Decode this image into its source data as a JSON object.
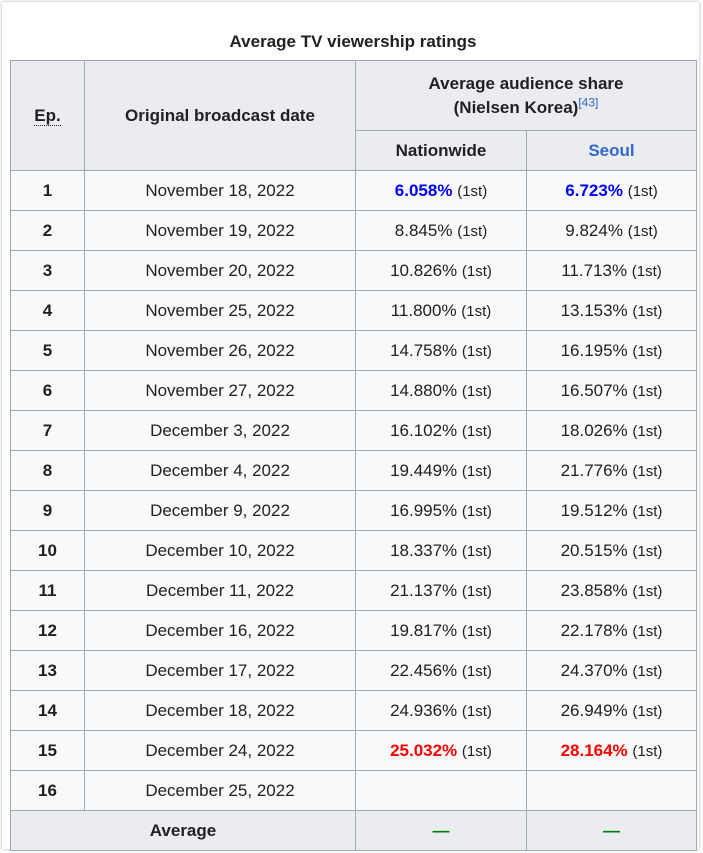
{
  "table": {
    "caption": "Average TV viewership ratings",
    "headers": {
      "ep": "Ep.",
      "date": "Original broadcast date",
      "share_line1": "Average audience share",
      "share_line2": "(Nielsen Korea)",
      "share_ref": "[43]",
      "nationwide": "Nationwide",
      "seoul": "Seoul"
    },
    "rows": [
      {
        "ep": "1",
        "date": "November 18, 2022",
        "nationwide": "6.058%",
        "nationwide_rank": "(1st)",
        "seoul": "6.723%",
        "seoul_rank": "(1st)"
      },
      {
        "ep": "2",
        "date": "November 19, 2022",
        "nationwide": "8.845%",
        "nationwide_rank": "(1st)",
        "seoul": "9.824%",
        "seoul_rank": "(1st)"
      },
      {
        "ep": "3",
        "date": "November 20, 2022",
        "nationwide": "10.826%",
        "nationwide_rank": "(1st)",
        "seoul": "11.713%",
        "seoul_rank": "(1st)"
      },
      {
        "ep": "4",
        "date": "November 25, 2022",
        "nationwide": "11.800%",
        "nationwide_rank": "(1st)",
        "seoul": "13.153%",
        "seoul_rank": "(1st)"
      },
      {
        "ep": "5",
        "date": "November 26, 2022",
        "nationwide": "14.758%",
        "nationwide_rank": "(1st)",
        "seoul": "16.195%",
        "seoul_rank": "(1st)"
      },
      {
        "ep": "6",
        "date": "November 27, 2022",
        "nationwide": "14.880%",
        "nationwide_rank": "(1st)",
        "seoul": "16.507%",
        "seoul_rank": "(1st)"
      },
      {
        "ep": "7",
        "date": "December 3, 2022",
        "nationwide": "16.102%",
        "nationwide_rank": "(1st)",
        "seoul": "18.026%",
        "seoul_rank": "(1st)"
      },
      {
        "ep": "8",
        "date": "December 4, 2022",
        "nationwide": "19.449%",
        "nationwide_rank": "(1st)",
        "seoul": "21.776%",
        "seoul_rank": "(1st)"
      },
      {
        "ep": "9",
        "date": "December 9, 2022",
        "nationwide": "16.995%",
        "nationwide_rank": "(1st)",
        "seoul": "19.512%",
        "seoul_rank": "(1st)"
      },
      {
        "ep": "10",
        "date": "December 10, 2022",
        "nationwide": "18.337%",
        "nationwide_rank": "(1st)",
        "seoul": "20.515%",
        "seoul_rank": "(1st)"
      },
      {
        "ep": "11",
        "date": "December 11, 2022",
        "nationwide": "21.137%",
        "nationwide_rank": "(1st)",
        "seoul": "23.858%",
        "seoul_rank": "(1st)"
      },
      {
        "ep": "12",
        "date": "December 16, 2022",
        "nationwide": "19.817%",
        "nationwide_rank": "(1st)",
        "seoul": "22.178%",
        "seoul_rank": "(1st)"
      },
      {
        "ep": "13",
        "date": "December 17, 2022",
        "nationwide": "22.456%",
        "nationwide_rank": "(1st)",
        "seoul": "24.370%",
        "seoul_rank": "(1st)"
      },
      {
        "ep": "14",
        "date": "December 18, 2022",
        "nationwide": "24.936%",
        "nationwide_rank": "(1st)",
        "seoul": "26.949%",
        "seoul_rank": "(1st)"
      },
      {
        "ep": "15",
        "date": "December 24, 2022",
        "nationwide": "25.032%",
        "nationwide_rank": "(1st)",
        "seoul": "28.164%",
        "seoul_rank": "(1st)"
      },
      {
        "ep": "16",
        "date": "December 25, 2022",
        "nationwide": "",
        "nationwide_rank": "",
        "seoul": "",
        "seoul_rank": ""
      }
    ],
    "average": {
      "label": "Average",
      "nationwide": "—",
      "seoul": "—"
    },
    "colors": {
      "lowest": "#0000ff",
      "highest": "#ff0000",
      "link": "#3366cc",
      "dash": "#008000"
    }
  }
}
